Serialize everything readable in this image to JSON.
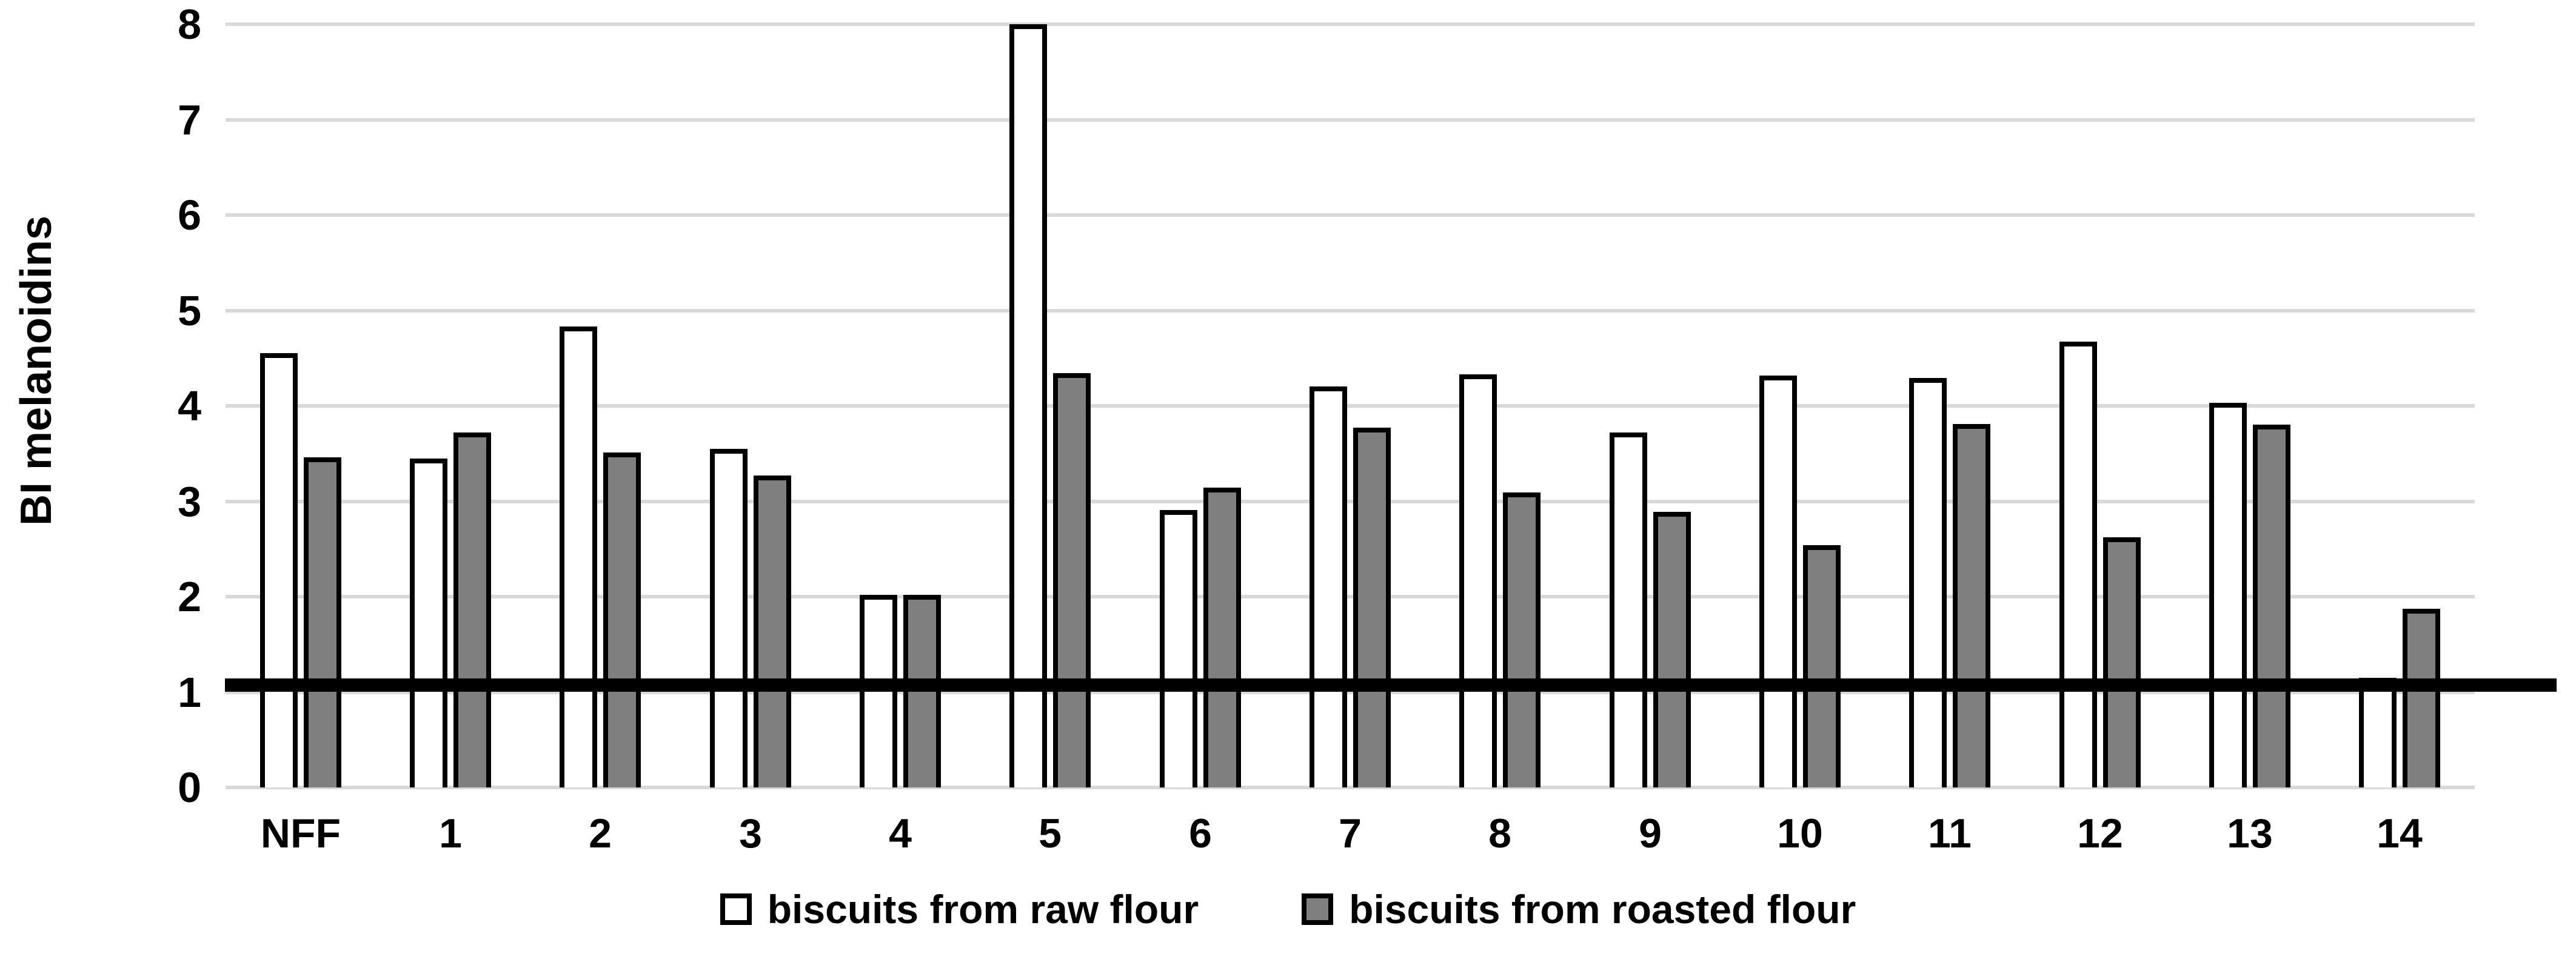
{
  "chart_data": {
    "type": "bar",
    "title": "",
    "ylabel": "BI melanoidins",
    "xlabel": "",
    "ylim": [
      0,
      8
    ],
    "yticks": [
      "0",
      "1",
      "2",
      "3",
      "4",
      "5",
      "6",
      "7",
      "8"
    ],
    "grid": "horizontal",
    "legend_position": "bottom-center",
    "categories": [
      "NFF",
      "1",
      "2",
      "3",
      "4",
      "5",
      "6",
      "7",
      "8",
      "9",
      "10",
      "11",
      "12",
      "13",
      "14"
    ],
    "series": [
      {
        "name": "biscuits from raw flour",
        "fill": "#ffffff",
        "border": "#000000",
        "values": [
          4.55,
          3.45,
          4.83,
          3.55,
          2.02,
          8.0,
          2.91,
          4.2,
          4.33,
          3.72,
          4.32,
          4.29,
          4.67,
          4.03,
          1.15
        ]
      },
      {
        "name": "biscuits from roasted flour",
        "fill": "#7f7f7f",
        "border": "#000000",
        "values": [
          3.46,
          3.72,
          3.51,
          3.27,
          2.02,
          4.34,
          3.14,
          3.77,
          3.09,
          2.89,
          2.54,
          3.81,
          2.62,
          3.8,
          1.87
        ]
      }
    ],
    "reference_line": {
      "value": 1.07,
      "color": "#000000",
      "thickness_units": 0.14
    },
    "colors": {
      "gridline": "#d9d9d9",
      "text": "#000000",
      "background": "#ffffff"
    }
  }
}
